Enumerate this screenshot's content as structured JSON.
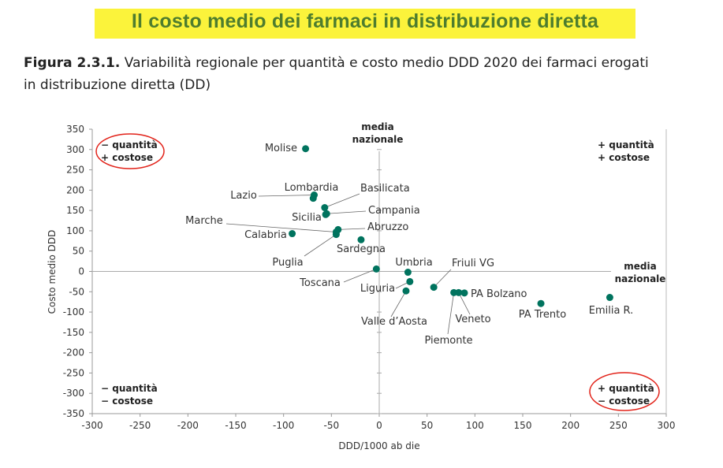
{
  "header": {
    "title": "Il costo medio dei farmaci in distribuzione diretta"
  },
  "caption": {
    "figure_label": "Figura 2.3.1.",
    "line1": "Variabilità regionale per quantità e costo medio DDD 2020 dei farmaci erogati",
    "line2": "in distribuzione diretta (DD)"
  },
  "chart_data": {
    "type": "scatter",
    "title": "Variabilità regionale per quantità e costo medio DDD 2020 dei farmaci erogati in distribuzione diretta (DD)",
    "xlabel": "DDD/1000 ab die",
    "ylabel": "Costo medio DDD",
    "xlim": [
      -300,
      300
    ],
    "ylim": [
      -350,
      350
    ],
    "xticks": [
      -300,
      -250,
      -200,
      -150,
      -100,
      -50,
      0,
      50,
      100,
      150,
      200,
      250,
      300
    ],
    "yticks": [
      350,
      300,
      250,
      200,
      150,
      100,
      50,
      0,
      -50,
      -100,
      -150,
      -200,
      -250,
      -300,
      -350
    ],
    "color": "#00735e",
    "points": [
      {
        "label": "Molise",
        "x": -77,
        "y": 302
      },
      {
        "label": "Lazio",
        "x": -68,
        "y": 188
      },
      {
        "label": "Lombardia",
        "x": -69,
        "y": 180
      },
      {
        "label": "Basilicata",
        "x": -57,
        "y": 157
      },
      {
        "label": "Sicilia",
        "x": -56,
        "y": 140
      },
      {
        "label": "Campania",
        "x": -55,
        "y": 142
      },
      {
        "label": "Abruzzo",
        "x": -43,
        "y": 103
      },
      {
        "label": "Marche",
        "x": -45,
        "y": 97
      },
      {
        "label": "Puglia",
        "x": -45,
        "y": 91
      },
      {
        "label": "Calabria",
        "x": -91,
        "y": 93
      },
      {
        "label": "Sardegna",
        "x": -19,
        "y": 78
      },
      {
        "label": "Toscana",
        "x": -3,
        "y": 6
      },
      {
        "label": "Umbria",
        "x": 30,
        "y": -2
      },
      {
        "label": "Liguria",
        "x": 32,
        "y": -25
      },
      {
        "label": "Valle d’Aosta",
        "x": 28,
        "y": -48
      },
      {
        "label": "Friuli VG",
        "x": 57,
        "y": -39
      },
      {
        "label": "Piemonte",
        "x": 78,
        "y": -52
      },
      {
        "label": "Veneto",
        "x": 83,
        "y": -52
      },
      {
        "label": "PA Bolzano",
        "x": 89,
        "y": -53
      },
      {
        "label": "PA Trento",
        "x": 169,
        "y": -79
      },
      {
        "label": "Emilia R.",
        "x": 241,
        "y": -64
      }
    ],
    "annotations": {
      "media_top": [
        "media",
        "nazionale"
      ],
      "media_right": [
        "media",
        "nazionale"
      ],
      "q_tl": [
        "− quantità",
        "+ costose"
      ],
      "q_tr": [
        "+ quantità",
        "+ costose"
      ],
      "q_bl": [
        "− quantità",
        "− costose"
      ],
      "q_br": [
        "+ quantità",
        "− costose"
      ]
    }
  }
}
